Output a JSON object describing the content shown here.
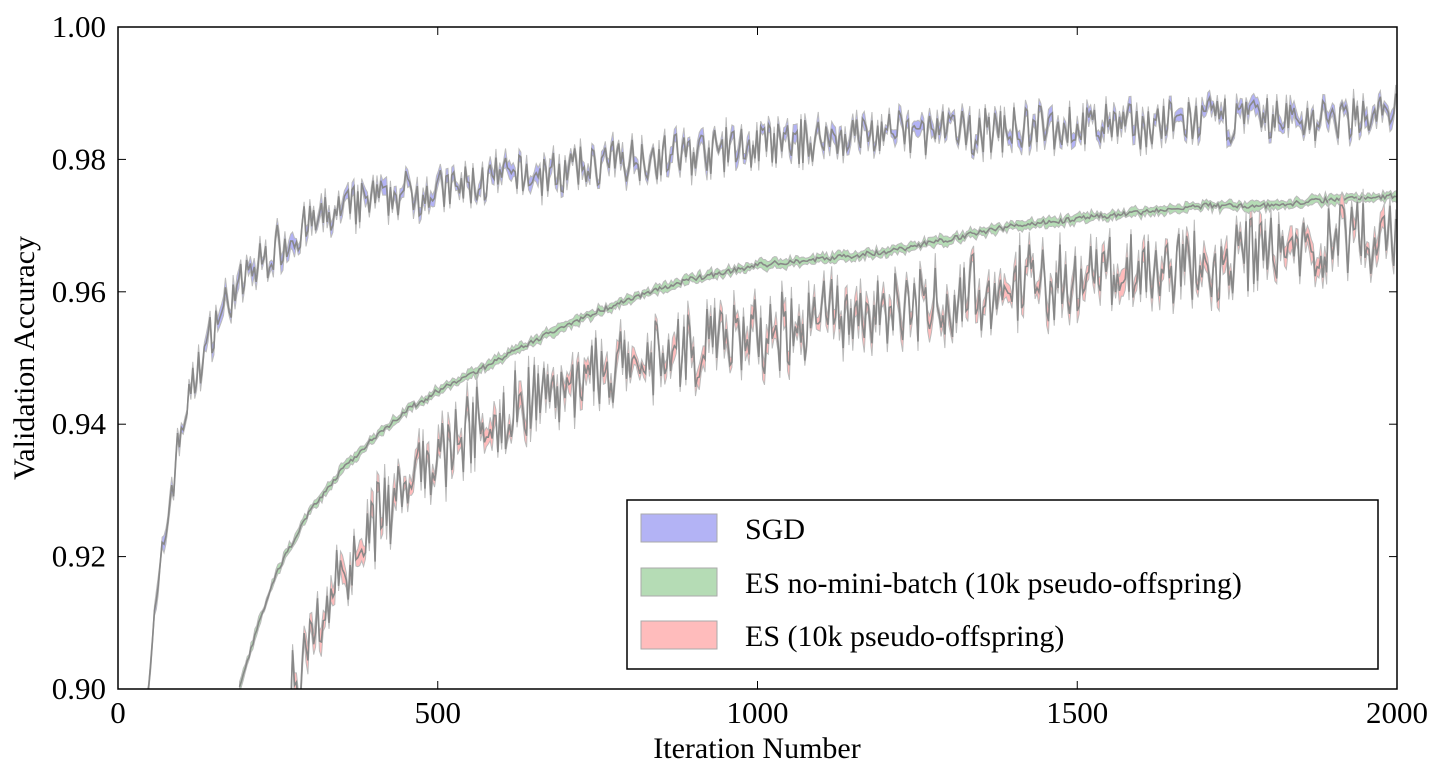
{
  "chart_data": {
    "type": "line",
    "title": "",
    "xlabel": "Iteration Number",
    "ylabel": "Validation Accuracy",
    "xlim": [
      0,
      2000
    ],
    "ylim": [
      0.9,
      1.0
    ],
    "xticks": [
      "0",
      "500",
      "1000",
      "1500",
      "2000"
    ],
    "xtick_values": [
      0,
      500,
      1000,
      1500,
      2000
    ],
    "yticks": [
      "0.90",
      "0.92",
      "0.94",
      "0.96",
      "0.98",
      "1.00"
    ],
    "ytick_values": [
      0.9,
      0.92,
      0.94,
      0.96,
      0.98,
      1.0
    ],
    "grid": false,
    "legend_position": "bottom-right",
    "series": [
      {
        "name": "SGD",
        "color": "#b3b3f5",
        "band_halfwidth": 0.001,
        "x": [
          45,
          60,
          80,
          100,
          125,
          150,
          175,
          200,
          250,
          300,
          350,
          400,
          450,
          500,
          600,
          700,
          800,
          900,
          1000,
          1100,
          1200,
          1300,
          1400,
          1500,
          1600,
          1700,
          1800,
          1900,
          2000
        ],
        "y": [
          0.9,
          0.912,
          0.928,
          0.94,
          0.948,
          0.955,
          0.959,
          0.962,
          0.967,
          0.97,
          0.972,
          0.974,
          0.975,
          0.975,
          0.977,
          0.978,
          0.98,
          0.981,
          0.982,
          0.983,
          0.984,
          0.984,
          0.9845,
          0.985,
          0.985,
          0.986,
          0.986,
          0.986,
          0.987
        ]
      },
      {
        "name": "ES no-mini-batch (10k pseudo-offspring)",
        "color": "#b5dcb5",
        "band_halfwidth": 0.0006,
        "x": [
          190,
          220,
          250,
          300,
          350,
          400,
          450,
          500,
          600,
          700,
          800,
          900,
          1000,
          1100,
          1200,
          1300,
          1400,
          1500,
          1600,
          1700,
          1800,
          1900,
          2000
        ],
        "y": [
          0.9,
          0.91,
          0.918,
          0.927,
          0.933,
          0.938,
          0.942,
          0.945,
          0.95,
          0.955,
          0.959,
          0.962,
          0.964,
          0.965,
          0.966,
          0.968,
          0.97,
          0.971,
          0.972,
          0.973,
          0.973,
          0.974,
          0.9745
        ]
      },
      {
        "name": "ES (10k pseudo-offspring)",
        "color": "#ffbcbc",
        "band_halfwidth": 0.0015,
        "x": [
          270,
          300,
          350,
          400,
          450,
          500,
          550,
          600,
          700,
          800,
          900,
          1000,
          1100,
          1200,
          1300,
          1400,
          1500,
          1600,
          1700,
          1800,
          1900,
          2000
        ],
        "y": [
          0.9,
          0.907,
          0.918,
          0.925,
          0.93,
          0.935,
          0.939,
          0.942,
          0.946,
          0.949,
          0.951,
          0.953,
          0.956,
          0.957,
          0.959,
          0.961,
          0.962,
          0.963,
          0.964,
          0.966,
          0.967,
          0.969
        ]
      }
    ]
  }
}
